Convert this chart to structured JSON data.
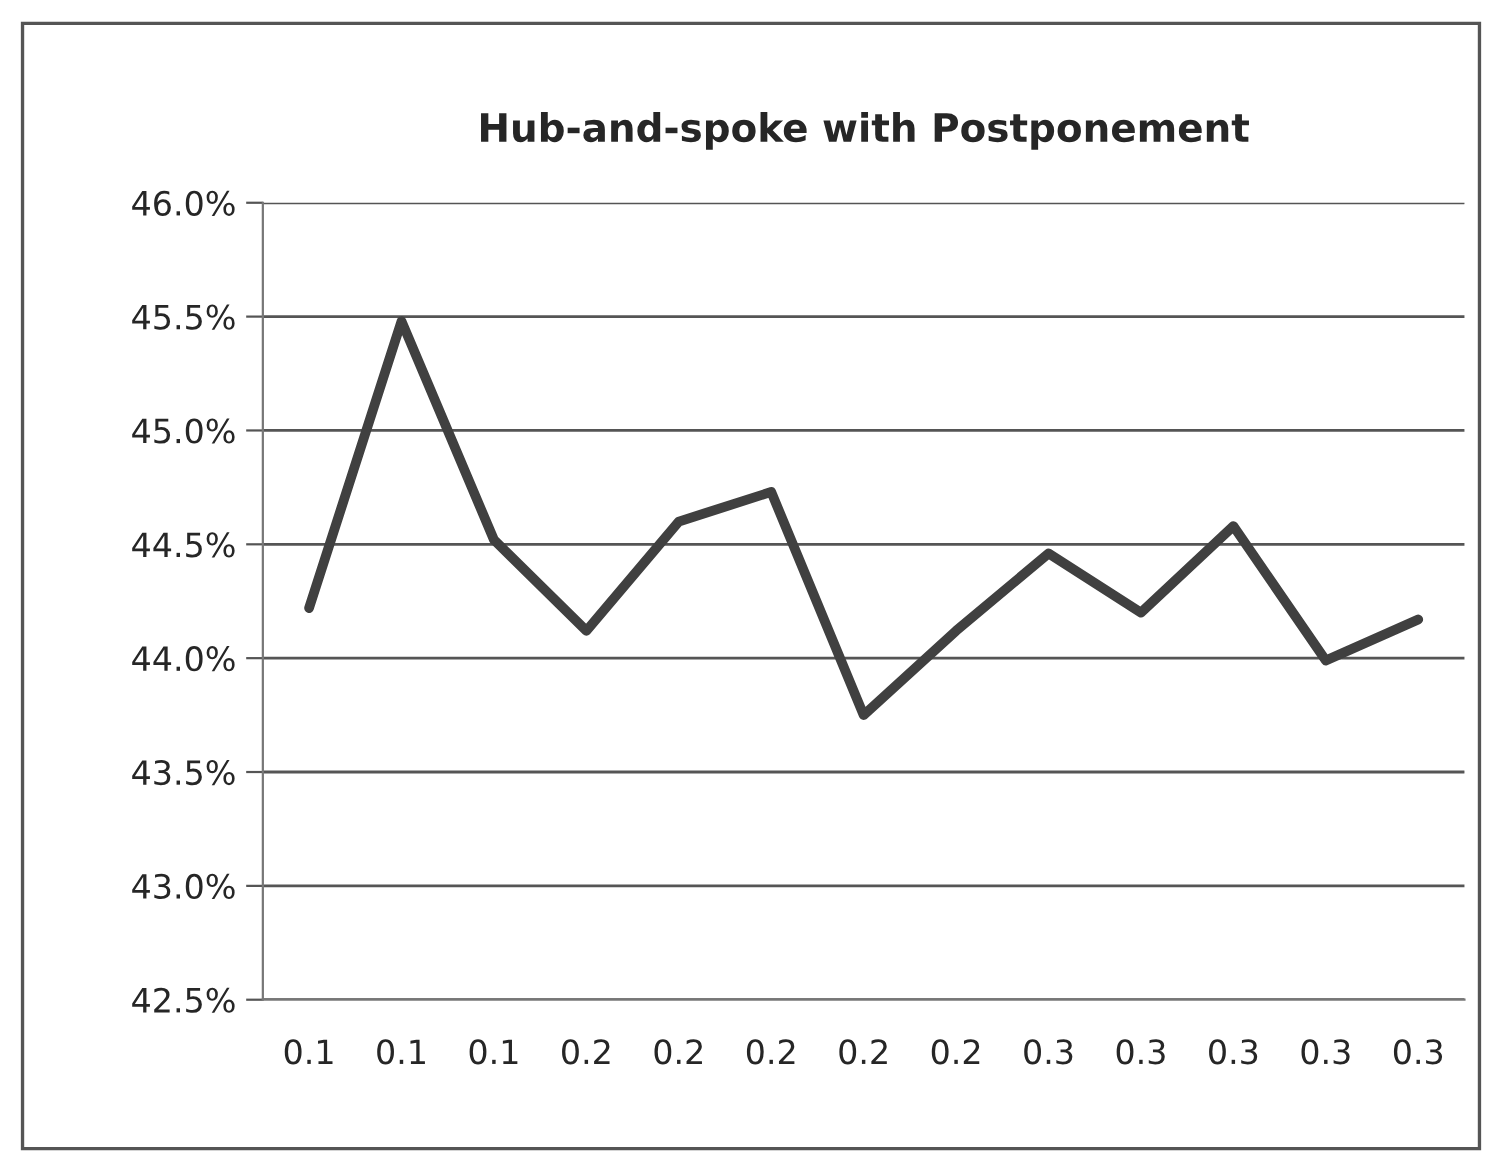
{
  "chart_data": {
    "type": "line",
    "title": "Hub-and-spoke with Postponement",
    "categories": [
      "0.1",
      "0.1",
      "0.1",
      "0.2",
      "0.2",
      "0.2",
      "0.2",
      "0.2",
      "0.3",
      "0.3",
      "0.3",
      "0.3",
      "0.3"
    ],
    "series": [
      {
        "color": "#404040",
        "values": [
          44.22,
          45.48,
          44.52,
          44.12,
          44.6,
          44.73,
          43.75,
          44.12,
          44.46,
          44.2,
          44.58,
          43.99,
          44.17
        ]
      }
    ],
    "ylim": [
      42.5,
      46.0
    ],
    "yticks": [
      {
        "value": 42.5,
        "label": "42.5%"
      },
      {
        "value": 43.0,
        "label": "43.0%"
      },
      {
        "value": 43.5,
        "label": "43.5%"
      },
      {
        "value": 44.0,
        "label": "44.0%"
      },
      {
        "value": 44.5,
        "label": "44.5%"
      },
      {
        "value": 45.0,
        "label": "45.0%"
      },
      {
        "value": 45.5,
        "label": "45.5%"
      },
      {
        "value": 46.0,
        "label": "46.0%"
      }
    ],
    "grid": "y",
    "legend": false,
    "marker": "none",
    "line_style": "solid"
  }
}
